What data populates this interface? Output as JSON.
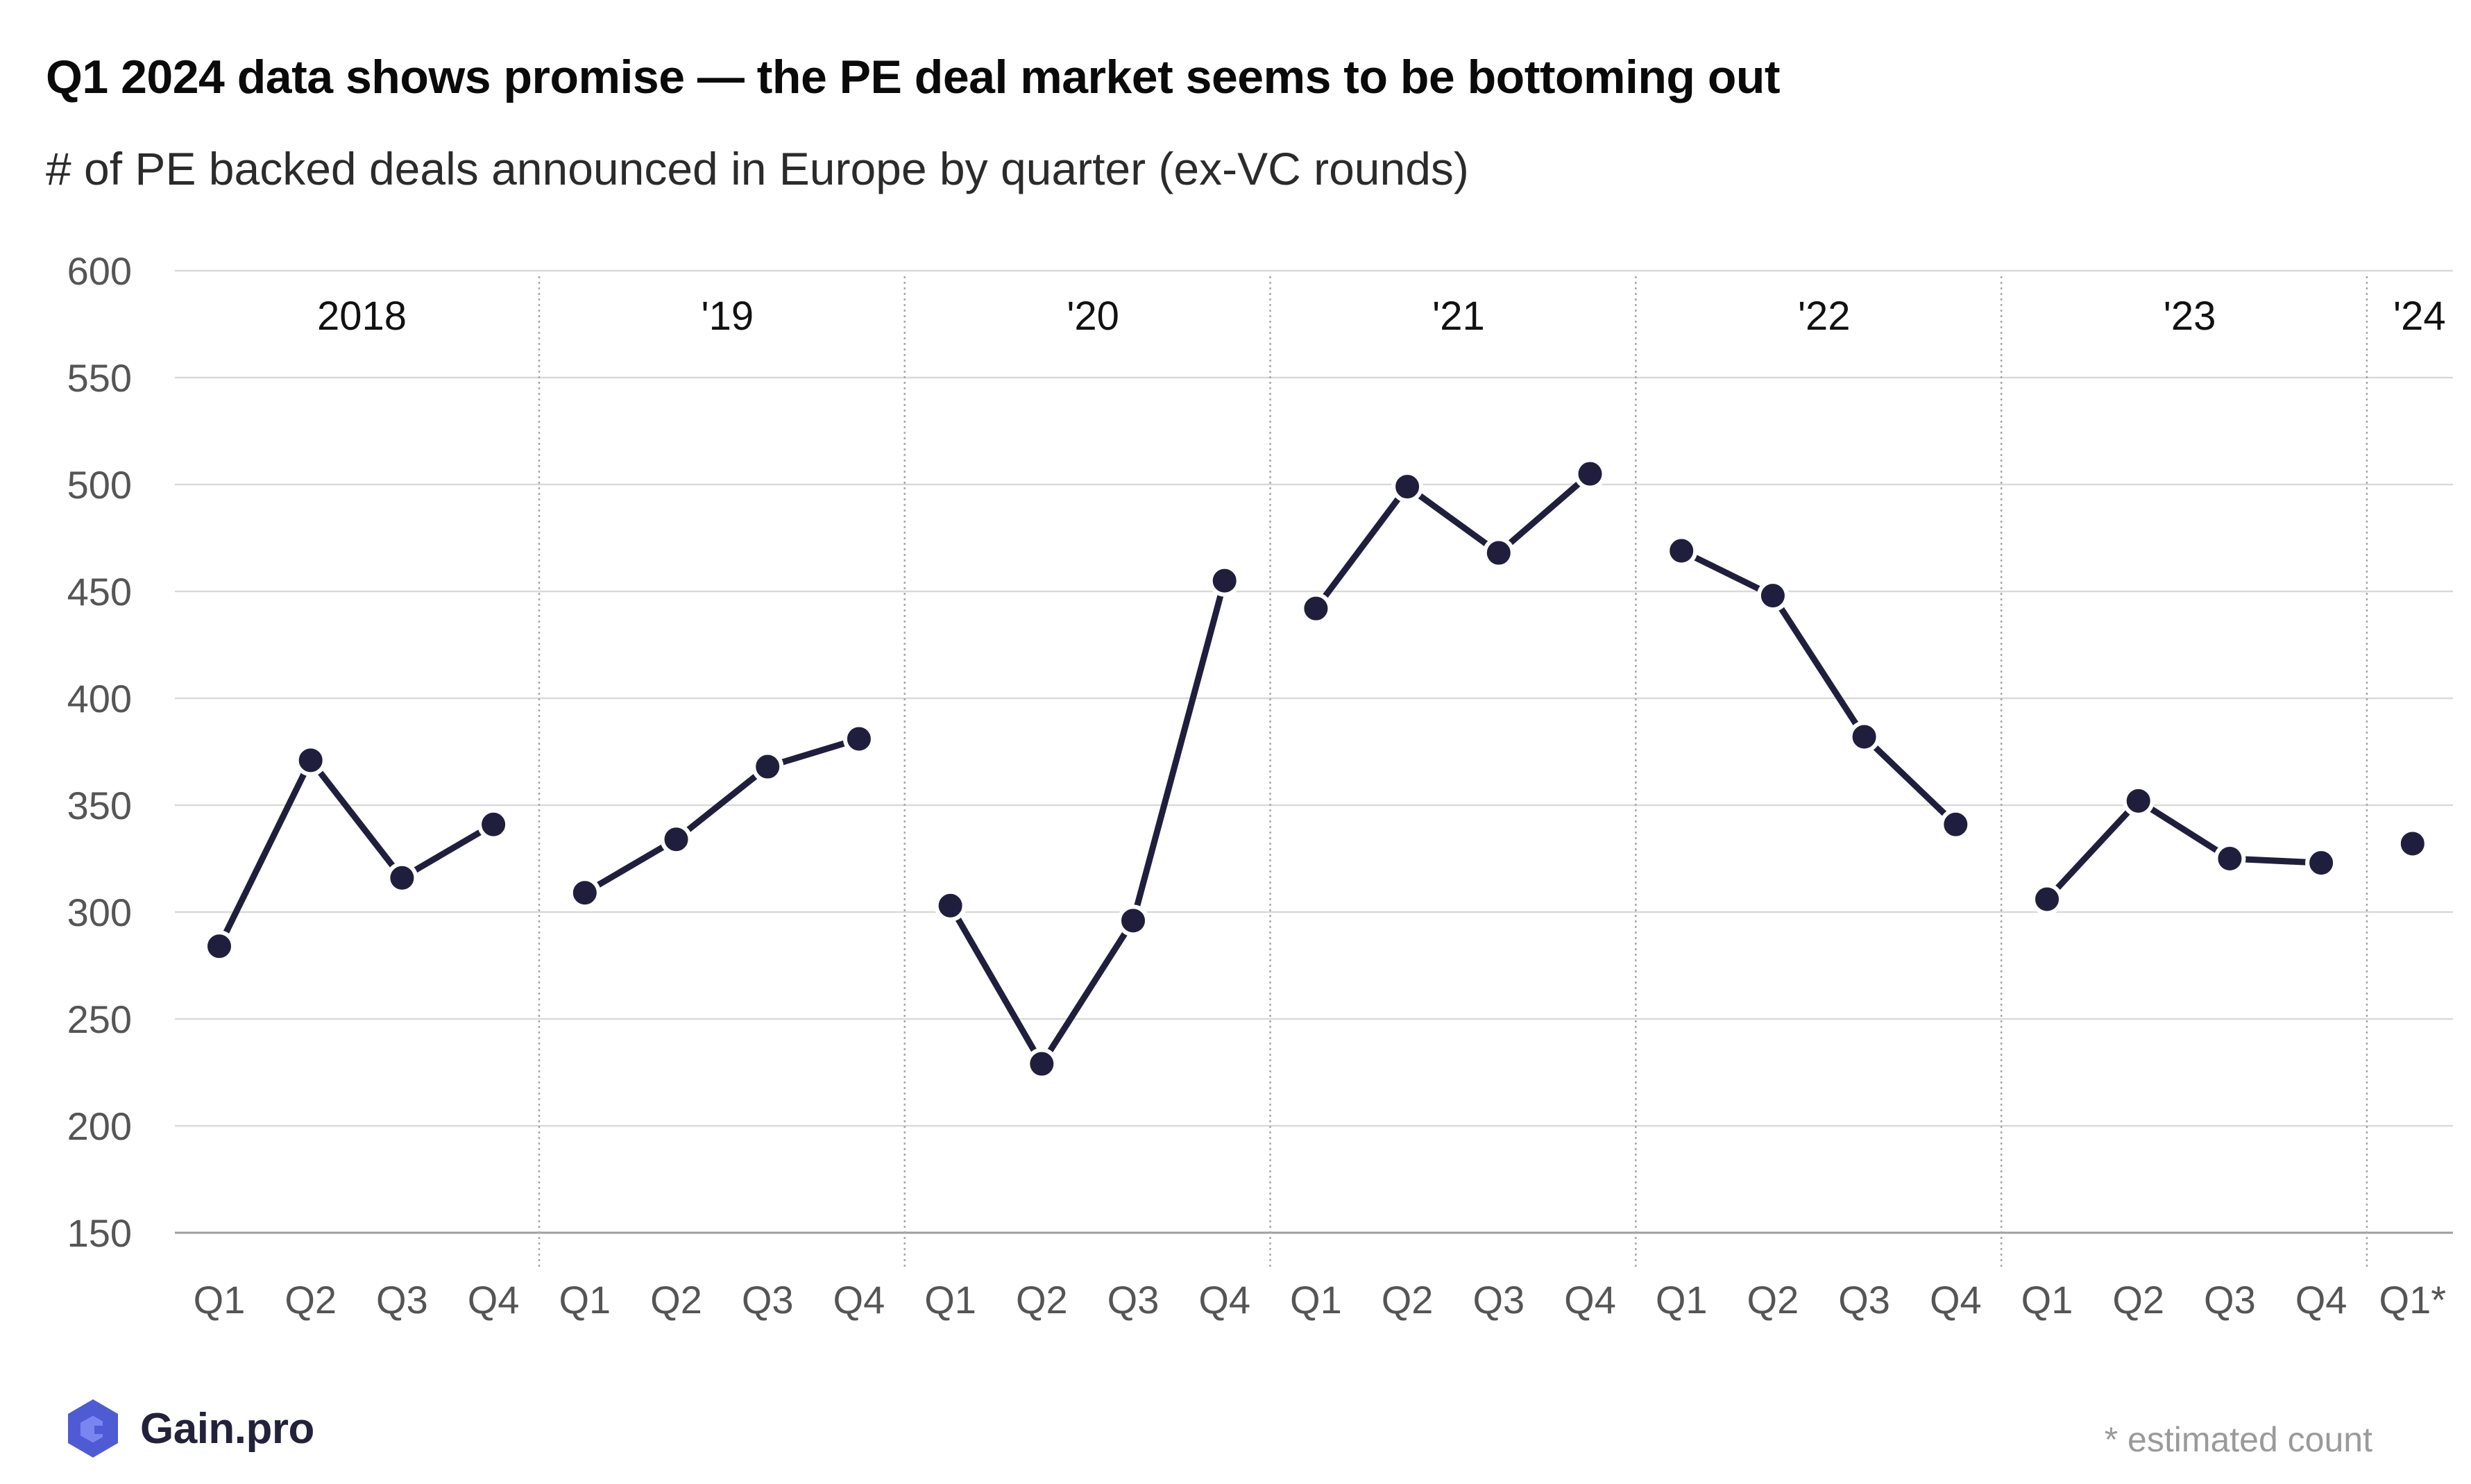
{
  "title": "Q1 2024 data shows promise — the PE deal market seems to be bottoming out",
  "subtitle": "# of PE backed deals announced in Europe by quarter (ex-VC rounds)",
  "logo": {
    "text": "Gain.pro",
    "icon": "gain-pro-logo-icon"
  },
  "footnote": "* estimated count",
  "colors": {
    "line": "#1f1f3d",
    "marker_stroke": "#ffffff",
    "grid": "#d9d9d9",
    "axis": "#9e9e9e"
  },
  "chart_data": {
    "type": "line",
    "title": "Q1 2024 data shows promise — the PE deal market seems to be bottoming out",
    "ylabel": "# of PE backed deals announced in Europe by quarter (ex-VC rounds)",
    "xlabel": "",
    "ylim": [
      150,
      600
    ],
    "yticks": [
      150,
      200,
      250,
      300,
      350,
      400,
      450,
      500,
      550,
      600
    ],
    "grid": true,
    "series": [
      {
        "year_label": "2018",
        "quarters": [
          "Q1",
          "Q2",
          "Q3",
          "Q4"
        ],
        "values": [
          284,
          371,
          316,
          341
        ]
      },
      {
        "year_label": "'19",
        "quarters": [
          "Q1",
          "Q2",
          "Q3",
          "Q4"
        ],
        "values": [
          309,
          334,
          368,
          381
        ]
      },
      {
        "year_label": "'20",
        "quarters": [
          "Q1",
          "Q2",
          "Q3",
          "Q4"
        ],
        "values": [
          303,
          229,
          296,
          455
        ]
      },
      {
        "year_label": "'21",
        "quarters": [
          "Q1",
          "Q2",
          "Q3",
          "Q4"
        ],
        "values": [
          442,
          499,
          468,
          505
        ]
      },
      {
        "year_label": "'22",
        "quarters": [
          "Q1",
          "Q2",
          "Q3",
          "Q4"
        ],
        "values": [
          469,
          448,
          382,
          341
        ]
      },
      {
        "year_label": "'23",
        "quarters": [
          "Q1",
          "Q2",
          "Q3",
          "Q4"
        ],
        "values": [
          306,
          352,
          325,
          323
        ]
      },
      {
        "year_label": "'24",
        "quarters": [
          "Q1*"
        ],
        "values": [
          332
        ]
      }
    ]
  }
}
